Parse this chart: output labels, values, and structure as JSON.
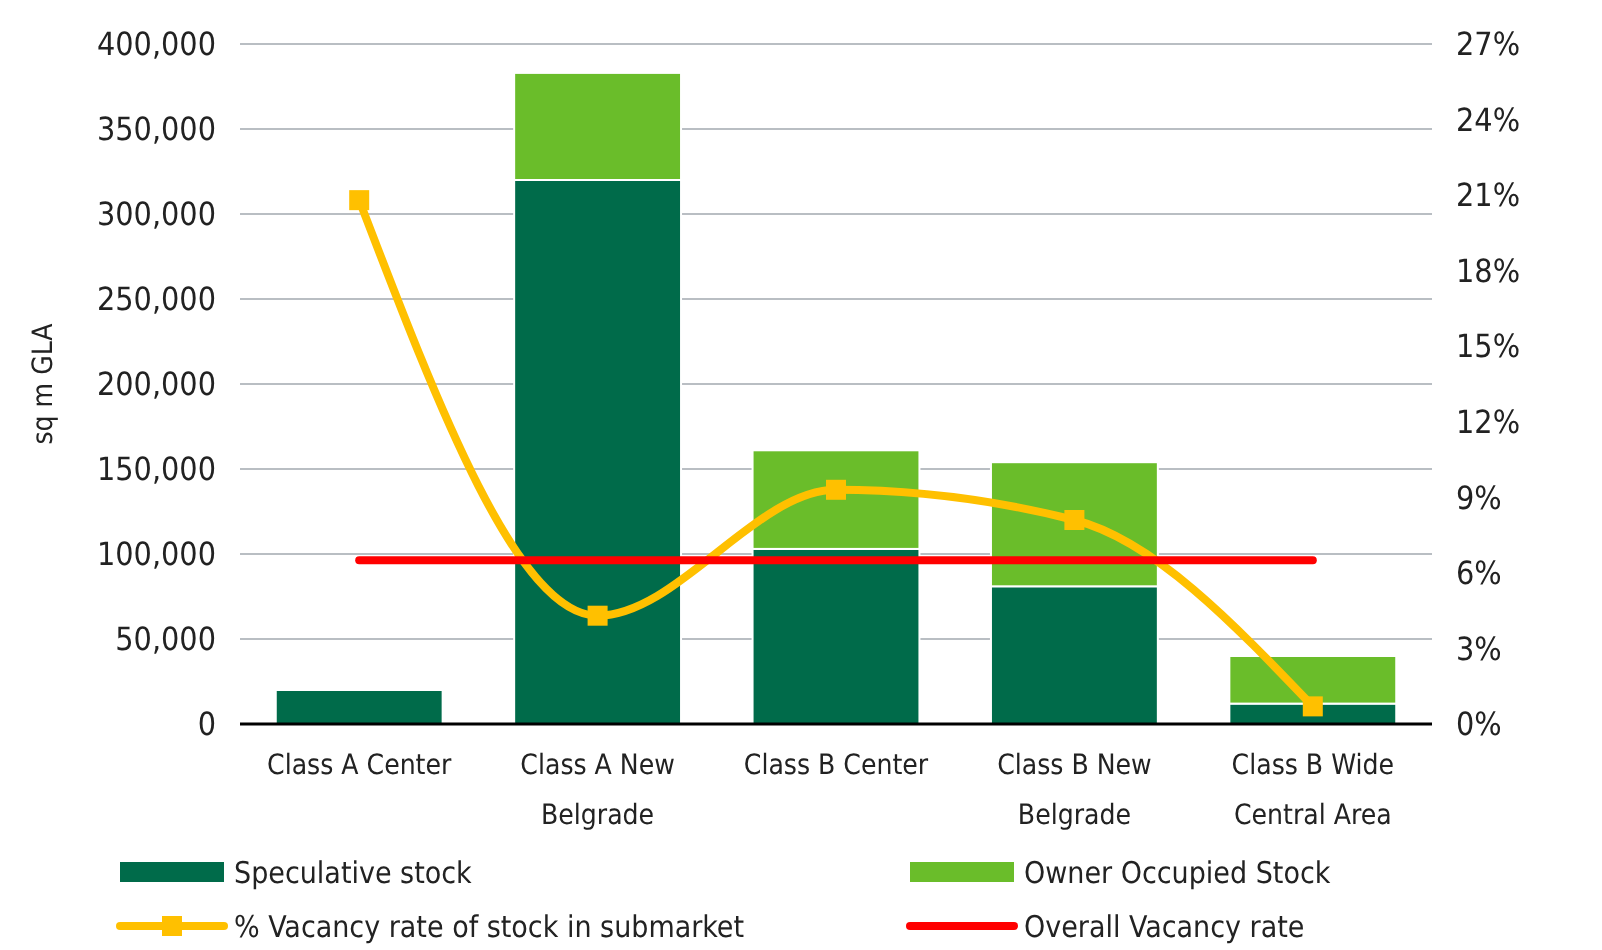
{
  "chart_data": {
    "type": "bar",
    "ylabel": "sq m GLA",
    "categories": [
      "Class A Center",
      "Class A New Belgrade",
      "Class B Center",
      "Class B New Belgrade",
      "Class B Wide Central Area"
    ],
    "stacked": true,
    "legend": "bottom",
    "grid": "y",
    "ylim": [
      0,
      400000
    ],
    "yticks": [
      {
        "value": 0,
        "label": "0"
      },
      {
        "value": 50000,
        "label": "50,000"
      },
      {
        "value": 100000,
        "label": "100,000"
      },
      {
        "value": 150000,
        "label": "150,000"
      },
      {
        "value": 200000,
        "label": "200,000"
      },
      {
        "value": 250000,
        "label": "250,000"
      },
      {
        "value": 300000,
        "label": "300,000"
      },
      {
        "value": 350000,
        "label": "350,000"
      },
      {
        "value": 400000,
        "label": "400,000"
      }
    ],
    "y2lim": [
      0,
      27
    ],
    "y2ticks": [
      {
        "value": 0,
        "label": "0%"
      },
      {
        "value": 3,
        "label": "3%"
      },
      {
        "value": 6,
        "label": "6%"
      },
      {
        "value": 9,
        "label": "9%"
      },
      {
        "value": 12,
        "label": "12%"
      },
      {
        "value": 15,
        "label": "15%"
      },
      {
        "value": 18,
        "label": "18%"
      },
      {
        "value": 21,
        "label": "21%"
      },
      {
        "value": 24,
        "label": "24%"
      },
      {
        "value": 27,
        "label": "27%"
      }
    ],
    "series": [
      {
        "name": "Speculative stock",
        "color": "#006b4a",
        "values": [
          20000,
          320000,
          103000,
          81000,
          12000
        ]
      },
      {
        "name": "Owner Occupied Stock",
        "color": "#6abd2a",
        "values": [
          null,
          63000,
          58000,
          73000,
          28000
        ]
      },
      {
        "name": "% Vacancy rate of stock in submarket",
        "type": "line",
        "axis": "y2",
        "marker": "square",
        "color": "#ffc000",
        "values": [
          20.8,
          4.3,
          9.3,
          8.1,
          0.7
        ]
      },
      {
        "name": "Overall Vacancy rate",
        "type": "line",
        "axis": "y2",
        "marker": "none",
        "color": "#ff0000",
        "values": [
          6.5,
          6.5,
          6.5,
          6.5,
          6.5
        ]
      }
    ]
  }
}
